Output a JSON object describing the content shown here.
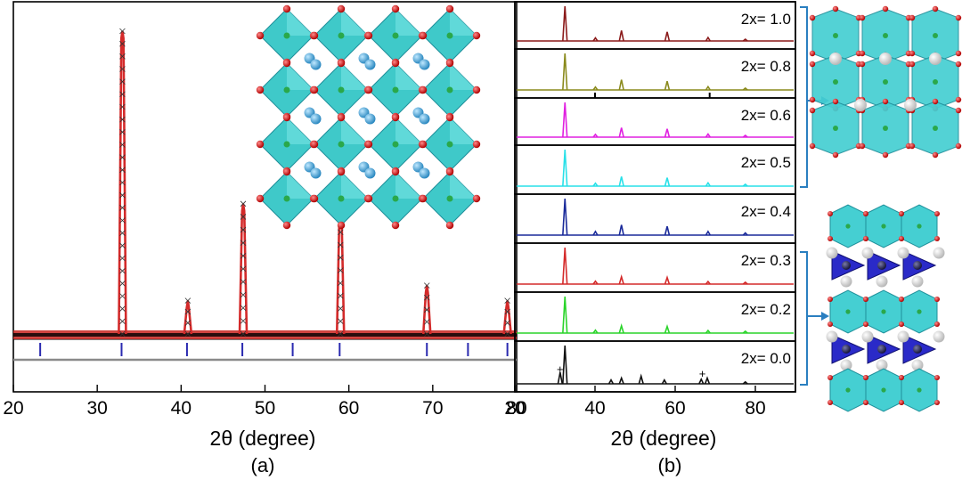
{
  "chart_data": [
    {
      "panel": "a",
      "type": "line",
      "panel_label": "(a)",
      "xlabel": "2θ (degree)",
      "xlim": [
        20,
        80
      ],
      "x_ticks": [
        "20",
        "30",
        "40",
        "50",
        "60",
        "70",
        "80"
      ],
      "series": [
        {
          "color": "#d42a2a",
          "peaks": [
            {
              "x": 33.0,
              "h": 1.0
            },
            {
              "x": 40.8,
              "h": 0.11
            },
            {
              "x": 47.4,
              "h": 0.43
            },
            {
              "x": 59.0,
              "h": 0.42
            },
            {
              "x": 69.3,
              "h": 0.16
            },
            {
              "x": 78.9,
              "h": 0.11
            }
          ]
        }
      ],
      "reflection_ticks": [
        23.2,
        32.9,
        40.7,
        47.3,
        53.3,
        58.9,
        69.3,
        74.2,
        78.9
      ]
    },
    {
      "panel": "b",
      "type": "line",
      "panel_label": "(b)",
      "xlabel": "2θ (degree)",
      "xlim": [
        20,
        90
      ],
      "x_ticks": [
        "20",
        "40",
        "60",
        "80"
      ],
      "series": [
        {
          "label": "2x= 1.0",
          "color": "#8b1a1a",
          "peaks": [
            {
              "x": 32.5,
              "h": 1.0
            },
            {
              "x": 40.1,
              "h": 0.09
            },
            {
              "x": 46.6,
              "h": 0.3
            },
            {
              "x": 58.0,
              "h": 0.26
            },
            {
              "x": 68.2,
              "h": 0.1
            },
            {
              "x": 77.5,
              "h": 0.05
            }
          ]
        },
        {
          "label": "2x= 0.8",
          "color": "#8a8a1c",
          "peaks": [
            {
              "x": 32.5,
              "h": 1.0
            },
            {
              "x": 40.1,
              "h": 0.08
            },
            {
              "x": 46.6,
              "h": 0.28
            },
            {
              "x": 58.0,
              "h": 0.24
            },
            {
              "x": 68.2,
              "h": 0.09
            },
            {
              "x": 77.5,
              "h": 0.05
            }
          ]
        },
        {
          "label": "2x= 0.6",
          "color": "#e020e0",
          "peaks": [
            {
              "x": 32.5,
              "h": 1.0
            },
            {
              "x": 40.1,
              "h": 0.08
            },
            {
              "x": 46.6,
              "h": 0.27
            },
            {
              "x": 58.0,
              "h": 0.24
            },
            {
              "x": 68.2,
              "h": 0.09
            },
            {
              "x": 77.5,
              "h": 0.05
            }
          ]
        },
        {
          "label": "2x= 0.5",
          "color": "#28e0e8",
          "peaks": [
            {
              "x": 32.5,
              "h": 1.0
            },
            {
              "x": 40.1,
              "h": 0.08
            },
            {
              "x": 46.6,
              "h": 0.26
            },
            {
              "x": 58.0,
              "h": 0.23
            },
            {
              "x": 68.2,
              "h": 0.09
            },
            {
              "x": 77.5,
              "h": 0.05
            }
          ]
        },
        {
          "label": "2x= 0.4",
          "color": "#1a2a9a",
          "peaks": [
            {
              "x": 32.5,
              "h": 1.0
            },
            {
              "x": 40.1,
              "h": 0.1
            },
            {
              "x": 46.6,
              "h": 0.28
            },
            {
              "x": 58.0,
              "h": 0.24
            },
            {
              "x": 68.2,
              "h": 0.1
            },
            {
              "x": 77.5,
              "h": 0.06
            }
          ]
        },
        {
          "label": "2x= 0.3",
          "color": "#d42a2a",
          "peaks": [
            {
              "x": 32.5,
              "h": 1.0
            },
            {
              "x": 40.1,
              "h": 0.08
            },
            {
              "x": 46.6,
              "h": 0.2
            },
            {
              "x": 58.0,
              "h": 0.18
            },
            {
              "x": 68.2,
              "h": 0.07
            },
            {
              "x": 77.5,
              "h": 0.05
            }
          ]
        },
        {
          "label": "2x= 0.2",
          "color": "#2ad42a",
          "peaks": [
            {
              "x": 32.5,
              "h": 1.0
            },
            {
              "x": 40.1,
              "h": 0.08
            },
            {
              "x": 46.6,
              "h": 0.2
            },
            {
              "x": 58.0,
              "h": 0.18
            },
            {
              "x": 68.2,
              "h": 0.07
            },
            {
              "x": 77.5,
              "h": 0.05
            }
          ]
        },
        {
          "label": "2x= 0.0",
          "color": "#111111",
          "peaks": [
            {
              "x": 31.3,
              "h": 0.3
            },
            {
              "x": 32.5,
              "h": 1.0
            },
            {
              "x": 44.0,
              "h": 0.1
            },
            {
              "x": 46.6,
              "h": 0.15
            },
            {
              "x": 51.5,
              "h": 0.2
            },
            {
              "x": 57.3,
              "h": 0.1
            },
            {
              "x": 66.5,
              "h": 0.12
            },
            {
              "x": 68.0,
              "h": 0.15
            },
            {
              "x": 77.5,
              "h": 0.05
            }
          ]
        }
      ],
      "markers": [
        "+",
        "+"
      ]
    }
  ]
}
